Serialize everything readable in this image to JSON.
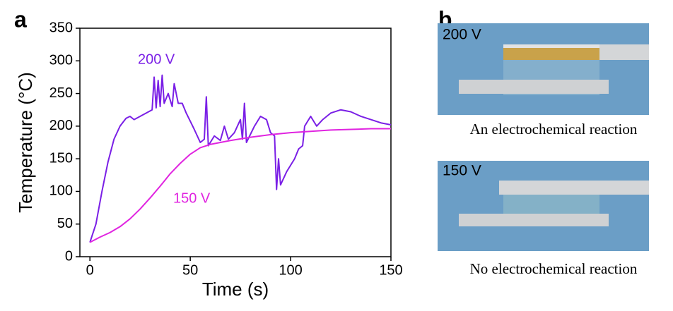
{
  "chart_data": {
    "type": "line",
    "xlabel": "Time (s)",
    "ylabel": "Temperature (°C)",
    "xlim": [
      -5,
      150
    ],
    "xticks": [
      0,
      50,
      100,
      150
    ],
    "ylim": [
      0,
      350
    ],
    "yticks": [
      0,
      50,
      100,
      150,
      200,
      250,
      300,
      350
    ],
    "series": [
      {
        "name": "200 V",
        "color": "#7a1fe6",
        "x": [
          0,
          3,
          6,
          9,
          12,
          15,
          18,
          20,
          22,
          25,
          28,
          31,
          32,
          33,
          34,
          35,
          36,
          37,
          39,
          41,
          42,
          44,
          46,
          48,
          52,
          55,
          57,
          58,
          59,
          62,
          65,
          67,
          69,
          72,
          75,
          76,
          77,
          78,
          82,
          85,
          88,
          90,
          92,
          93,
          94,
          95,
          98,
          102,
          104,
          106,
          107,
          110,
          113,
          116,
          120,
          125,
          130,
          135,
          140,
          145,
          150
        ],
        "values": [
          22,
          50,
          100,
          145,
          180,
          200,
          212,
          215,
          210,
          215,
          220,
          225,
          275,
          228,
          270,
          230,
          278,
          235,
          250,
          230,
          265,
          235,
          235,
          220,
          195,
          175,
          180,
          245,
          170,
          185,
          178,
          200,
          180,
          190,
          210,
          180,
          235,
          175,
          200,
          215,
          210,
          190,
          185,
          103,
          150,
          110,
          130,
          150,
          165,
          170,
          200,
          215,
          200,
          210,
          220,
          225,
          222,
          215,
          210,
          205,
          202
        ]
      },
      {
        "name": "150 V",
        "color": "#e024e0",
        "x": [
          0,
          5,
          10,
          15,
          20,
          25,
          30,
          35,
          40,
          45,
          50,
          55,
          60,
          70,
          80,
          90,
          100,
          110,
          120,
          130,
          140,
          150
        ],
        "values": [
          22,
          30,
          37,
          46,
          58,
          73,
          90,
          108,
          127,
          143,
          157,
          167,
          172,
          178,
          183,
          187,
          190,
          192,
          194,
          195,
          196,
          196
        ]
      }
    ]
  },
  "panel_labels": [
    "a",
    "b"
  ],
  "photos": [
    {
      "label": "200 V",
      "caption": "An electrochemical reaction"
    },
    {
      "label": "150 V",
      "caption": "No electrochemical reaction"
    }
  ]
}
